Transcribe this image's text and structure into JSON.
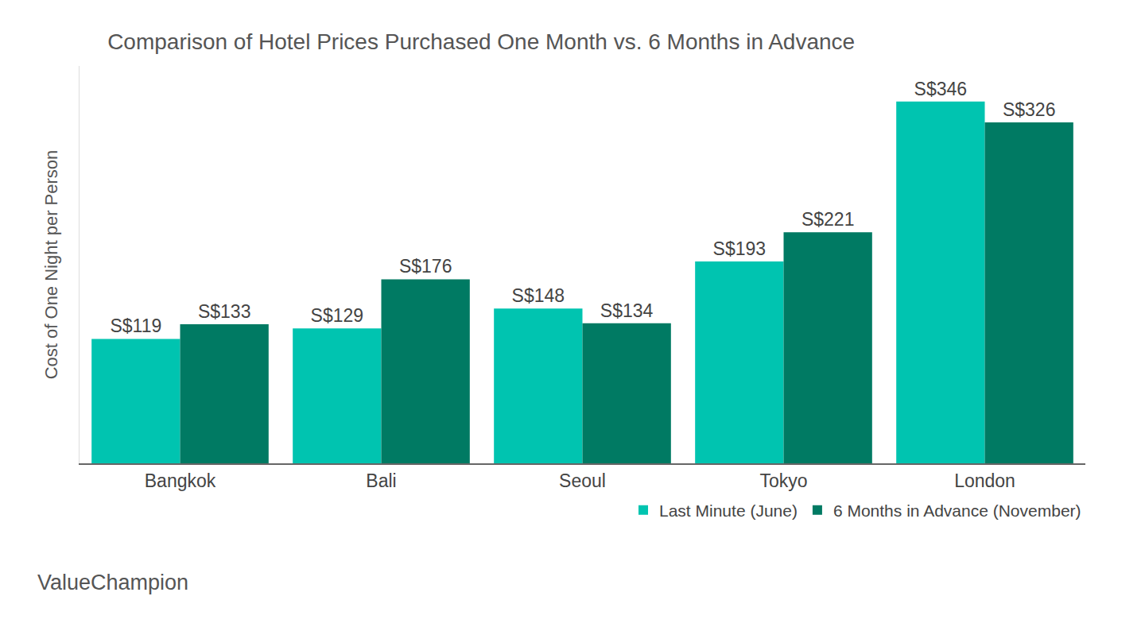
{
  "chart_data": {
    "type": "bar",
    "title": "Comparison of Hotel Prices Purchased One Month vs. 6 Months in Advance",
    "y_label": "Cost of One Night per Person",
    "categories": [
      "Bangkok",
      "Bali",
      "Seoul",
      "Tokyo",
      "London"
    ],
    "series": [
      {
        "name": "Last Minute (June)",
        "color": "#00c4b0",
        "values": [
          119,
          129,
          148,
          193,
          346
        ],
        "value_labels": [
          "S$119",
          "S$129",
          "S$148",
          "S$193",
          "S$346"
        ]
      },
      {
        "name": "6 Months in Advance (November)",
        "color": "#007a63",
        "values": [
          133,
          176,
          134,
          221,
          326
        ],
        "value_labels": [
          "S$133",
          "S$176",
          "S$134",
          "S$221",
          "S$326"
        ]
      }
    ],
    "ylim": [
      0,
      380
    ],
    "grid": false,
    "legend": "bottom right",
    "data_labels": true,
    "tick_labels": "x",
    "annotations": [
      "ValueChampion"
    ]
  }
}
